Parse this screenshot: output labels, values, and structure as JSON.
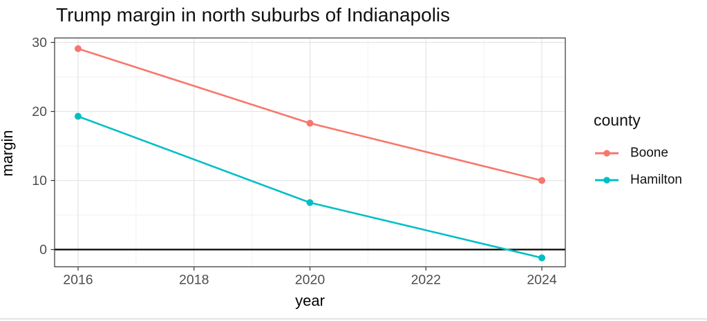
{
  "window": {
    "bottom_border_color": "#e0e3e8"
  },
  "chart_data": {
    "type": "line",
    "title": "Trump margin in north suburbs of Indianapolis",
    "xlabel": "year",
    "ylabel": "margin",
    "legend_title": "county",
    "legend_position": "right",
    "grid": true,
    "x": [
      2016,
      2020,
      2024
    ],
    "series": [
      {
        "name": "Boone",
        "color": "#F8766D",
        "values": [
          29.1,
          18.3,
          10.0
        ]
      },
      {
        "name": "Hamilton",
        "color": "#00BFC4",
        "values": [
          19.3,
          6.8,
          -1.2
        ]
      }
    ],
    "hline": 0,
    "hline_color": "#000000",
    "x_ticks": [
      2016,
      2018,
      2020,
      2022,
      2024
    ],
    "y_ticks": [
      0,
      10,
      20,
      30
    ],
    "x_minor_ticks": [
      2017,
      2019,
      2021,
      2023
    ],
    "y_minor_ticks": [
      5,
      15,
      25
    ],
    "xlim": [
      2015.595,
      2024.405
    ],
    "ylim": [
      -2.5,
      30.65
    ]
  }
}
